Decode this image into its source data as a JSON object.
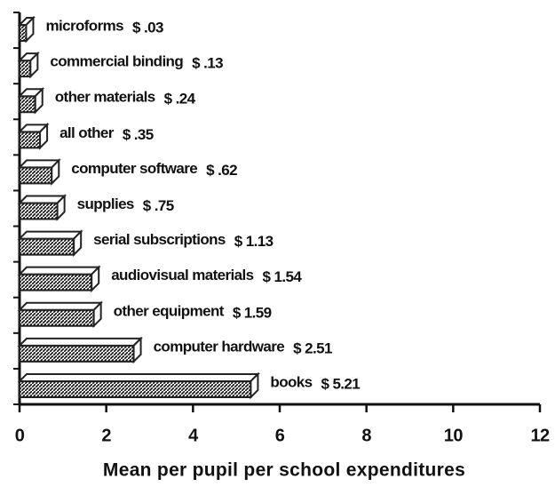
{
  "chart_data": {
    "type": "bar3d_horizontal",
    "categories": [
      "microforms",
      "commercial binding",
      "other materials",
      "all other",
      "computer software",
      "supplies",
      "serial subscriptions",
      "audiovisual materials",
      "other equipment",
      "computer hardware",
      "books"
    ],
    "values": [
      0.03,
      0.13,
      0.24,
      0.35,
      0.62,
      0.75,
      1.13,
      1.54,
      1.59,
      2.51,
      5.21
    ],
    "value_labels": [
      "$ .03",
      "$ .13",
      "$ .24",
      "$ .35",
      "$ .62",
      "$ .75",
      "$ 1.13",
      "$ 1.54",
      "$ 1.59",
      "$ 2.51",
      "$ 5.21"
    ],
    "xlabel": "Mean per pupil per school expenditures",
    "xlim": [
      0,
      12
    ],
    "xticks": [
      0,
      2,
      4,
      6,
      8,
      10,
      12
    ],
    "color": "#222222"
  }
}
